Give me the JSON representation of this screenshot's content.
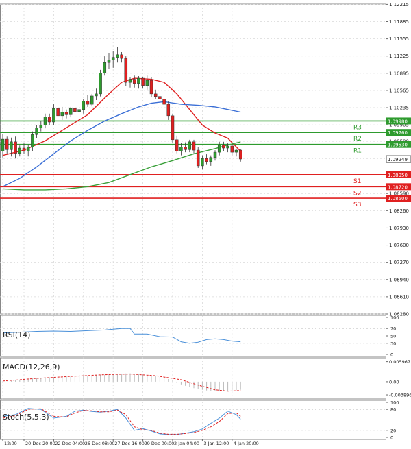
{
  "chart_data": {
    "type": "candlestick",
    "main_panel": {
      "price_axis": {
        "range": [
          1.0628,
          1.1222
        ],
        "ticks": [
          "1.12215",
          "1.11885",
          "1.11555",
          "1.11225",
          "1.10895",
          "1.10565",
          "1.10235",
          "1.09905",
          "1.09590",
          "1.09260",
          "1.08590",
          "1.08260",
          "1.07930",
          "1.07600",
          "1.07270",
          "1.06940",
          "1.06610",
          "1.06280"
        ]
      },
      "current_price": "1.09249",
      "levels": [
        {
          "label": "R3",
          "value": 1.0998,
          "tag": "1.09980",
          "color": "#2e9b2e"
        },
        {
          "label": "R2",
          "value": 1.0976,
          "tag": "1.09760",
          "color": "#2e9b2e"
        },
        {
          "label": "R1",
          "value": 1.0953,
          "tag": "1.09530",
          "color": "#2e9b2e"
        },
        {
          "label": "S1",
          "value": 1.0895,
          "tag": "1.08950",
          "color": "#e02020"
        },
        {
          "label": "S2",
          "value": 1.0872,
          "tag": "1.08720",
          "color": "#e02020"
        },
        {
          "label": "S3",
          "value": 1.085,
          "tag": "1.08500",
          "color": "#e02020"
        }
      ],
      "candles": [
        [
          1.094,
          1.0973,
          1.0928,
          1.0963
        ],
        [
          1.0963,
          1.0968,
          1.0935,
          1.0943
        ],
        [
          1.0943,
          1.0966,
          1.093,
          1.0958
        ],
        [
          1.0958,
          1.0968,
          1.0926,
          1.0936
        ],
        [
          1.0936,
          1.0951,
          1.093,
          1.0946
        ],
        [
          1.0946,
          1.0955,
          1.0935,
          1.094
        ],
        [
          1.094,
          1.0953,
          1.093,
          1.0948
        ],
        [
          1.0948,
          1.0978,
          1.094,
          1.0972
        ],
        [
          1.0972,
          1.099,
          1.0965,
          1.0985
        ],
        [
          1.0985,
          1.0998,
          1.0978,
          1.099
        ],
        [
          1.099,
          1.1012,
          1.0984,
          1.1006
        ],
        [
          1.1006,
          1.1012,
          1.099,
          1.0996
        ],
        [
          1.0996,
          1.103,
          1.099,
          1.1022
        ],
        [
          1.1022,
          1.1035,
          1.1,
          1.1008
        ],
        [
          1.1008,
          1.1025,
          1.1,
          1.1015
        ],
        [
          1.1015,
          1.102,
          1.1003,
          1.101
        ],
        [
          1.101,
          1.1025,
          1.1005,
          1.1022
        ],
        [
          1.1022,
          1.103,
          1.1012,
          1.1016
        ],
        [
          1.1016,
          1.1028,
          1.1008,
          1.102
        ],
        [
          1.102,
          1.104,
          1.1012,
          1.1036
        ],
        [
          1.1036,
          1.1048,
          1.1025,
          1.103
        ],
        [
          1.103,
          1.105,
          1.1026,
          1.1046
        ],
        [
          1.1046,
          1.106,
          1.1038,
          1.105
        ],
        [
          1.105,
          1.1096,
          1.1045,
          1.109
        ],
        [
          1.109,
          1.1122,
          1.1085,
          1.111
        ],
        [
          1.111,
          1.1128,
          1.1098,
          1.1115
        ],
        [
          1.1115,
          1.1132,
          1.11,
          1.112
        ],
        [
          1.112,
          1.114,
          1.111,
          1.1125
        ],
        [
          1.1125,
          1.113,
          1.111,
          1.1118
        ],
        [
          1.1118,
          1.1122,
          1.1065,
          1.1072
        ],
        [
          1.1072,
          1.1082,
          1.1062,
          1.1078
        ],
        [
          1.1078,
          1.1085,
          1.1062,
          1.107
        ],
        [
          1.107,
          1.1084,
          1.106,
          1.108
        ],
        [
          1.108,
          1.1082,
          1.106,
          1.1066
        ],
        [
          1.1066,
          1.1085,
          1.1058,
          1.1076
        ],
        [
          1.1076,
          1.1082,
          1.1044,
          1.105
        ],
        [
          1.105,
          1.1058,
          1.104,
          1.1045
        ],
        [
          1.1045,
          1.1052,
          1.1035,
          1.104
        ],
        [
          1.104,
          1.1048,
          1.1026,
          1.103
        ],
        [
          1.103,
          1.1036,
          1.1,
          1.1008
        ],
        [
          1.1008,
          1.1012,
          1.0955,
          1.0962
        ],
        [
          1.0962,
          1.097,
          1.0936,
          1.094
        ],
        [
          1.094,
          1.0956,
          1.0932,
          1.0948
        ],
        [
          1.0948,
          1.0957,
          1.0938,
          1.0943
        ],
        [
          1.0943,
          1.0962,
          1.0938,
          1.0958
        ],
        [
          1.0958,
          1.0962,
          1.0936,
          1.0942
        ],
        [
          1.0942,
          1.0948,
          1.0908,
          1.0912
        ],
        [
          1.0912,
          1.0932,
          1.0905,
          1.0926
        ],
        [
          1.0926,
          1.0934,
          1.0915,
          1.092
        ],
        [
          1.092,
          1.0932,
          1.0912,
          1.0928
        ],
        [
          1.0928,
          1.0942,
          1.0922,
          1.0938
        ],
        [
          1.0938,
          1.0958,
          1.0932,
          1.0952
        ],
        [
          1.0952,
          1.0958,
          1.094,
          1.0946
        ],
        [
          1.0946,
          1.0955,
          1.0938,
          1.095
        ],
        [
          1.095,
          1.0954,
          1.0932,
          1.0938
        ],
        [
          1.0938,
          1.0945,
          1.093,
          1.0942
        ],
        [
          1.0942,
          1.0944,
          1.092,
          1.0925
        ]
      ],
      "moving_averages": [
        {
          "color": "#e02020",
          "points": [
            [
              0,
              1.0932
            ],
            [
              5,
              1.0942
            ],
            [
              10,
              1.096
            ],
            [
              15,
              1.0985
            ],
            [
              20,
              1.101
            ],
            [
              25,
              1.105
            ],
            [
              28,
              1.1072
            ],
            [
              31,
              1.108
            ],
            [
              35,
              1.1078
            ],
            [
              38,
              1.1072
            ],
            [
              41,
              1.105
            ],
            [
              44,
              1.102
            ],
            [
              47,
              1.099
            ],
            [
              50,
              1.0975
            ],
            [
              53,
              1.0965
            ],
            [
              56,
              1.094
            ]
          ]
        },
        {
          "color": "#3b6fd6",
          "points": [
            [
              0,
              1.0872
            ],
            [
              4,
              1.0888
            ],
            [
              8,
              1.091
            ],
            [
              12,
              1.0935
            ],
            [
              16,
              1.096
            ],
            [
              20,
              1.098
            ],
            [
              24,
              1.0998
            ],
            [
              28,
              1.1012
            ],
            [
              32,
              1.1025
            ],
            [
              35,
              1.1032
            ],
            [
              38,
              1.1035
            ],
            [
              42,
              1.103
            ],
            [
              46,
              1.1028
            ],
            [
              50,
              1.1025
            ],
            [
              53,
              1.102
            ],
            [
              56,
              1.1015
            ]
          ]
        },
        {
          "color": "#3aa03a",
          "points": [
            [
              0,
              1.0868
            ],
            [
              5,
              1.0866
            ],
            [
              10,
              1.0866
            ],
            [
              15,
              1.0868
            ],
            [
              20,
              1.0872
            ],
            [
              25,
              1.088
            ],
            [
              30,
              1.0895
            ],
            [
              35,
              1.091
            ],
            [
              40,
              1.0922
            ],
            [
              45,
              1.0935
            ],
            [
              50,
              1.0945
            ],
            [
              53,
              1.0952
            ],
            [
              56,
              1.0958
            ]
          ]
        }
      ]
    },
    "indicators": [
      {
        "name": "RSI(14)",
        "ticks": [
          "100",
          "70",
          "50",
          "30",
          "0"
        ],
        "range": [
          0,
          100
        ],
        "color": "#4a90d9",
        "values": [
          [
            0,
            58
          ],
          [
            4,
            60
          ],
          [
            8,
            62
          ],
          [
            12,
            63
          ],
          [
            16,
            62
          ],
          [
            20,
            64
          ],
          [
            24,
            66
          ],
          [
            26,
            68
          ],
          [
            28,
            70
          ],
          [
            30,
            70
          ],
          [
            31,
            55
          ],
          [
            34,
            55
          ],
          [
            37,
            48
          ],
          [
            40,
            47
          ],
          [
            42,
            34
          ],
          [
            44,
            30
          ],
          [
            46,
            33
          ],
          [
            48,
            40
          ],
          [
            50,
            42
          ],
          [
            52,
            40
          ],
          [
            54,
            36
          ],
          [
            56,
            34
          ]
        ]
      },
      {
        "name": "MACD(12,26,9)",
        "ticks": [
          "0.005967",
          "0.00",
          "-0.003896"
        ],
        "range": [
          -0.0045,
          0.0065
        ],
        "histogram": [
          [
            0,
            -0.0001
          ],
          [
            3,
            0.0004
          ],
          [
            6,
            0.0009
          ],
          [
            9,
            0.0012
          ],
          [
            12,
            0.0014
          ],
          [
            15,
            0.0017
          ],
          [
            18,
            0.0018
          ],
          [
            21,
            0.0019
          ],
          [
            24,
            0.0021
          ],
          [
            27,
            0.0024
          ],
          [
            30,
            0.0025
          ],
          [
            32,
            0.0023
          ],
          [
            34,
            0.002
          ],
          [
            36,
            0.0016
          ],
          [
            38,
            0.0012
          ],
          [
            40,
            0.0004
          ],
          [
            42,
            -0.0008
          ],
          [
            44,
            -0.0016
          ],
          [
            46,
            -0.0022
          ],
          [
            48,
            -0.0026
          ],
          [
            50,
            -0.0028
          ],
          [
            52,
            -0.0028
          ],
          [
            54,
            -0.0026
          ],
          [
            56,
            -0.0024
          ]
        ],
        "signal": [
          [
            0,
            0.0002
          ],
          [
            8,
            0.001
          ],
          [
            16,
            0.0016
          ],
          [
            24,
            0.0021
          ],
          [
            30,
            0.0023
          ],
          [
            36,
            0.0018
          ],
          [
            42,
            0.0006
          ],
          [
            46,
            -0.001
          ],
          [
            50,
            -0.0024
          ],
          [
            53,
            -0.0028
          ],
          [
            56,
            -0.0026
          ]
        ]
      },
      {
        "name": "Stoch(5,5,3)",
        "ticks": [
          "100",
          "80",
          "20",
          "0"
        ],
        "range": [
          0,
          100
        ],
        "k": [
          [
            0,
            60
          ],
          [
            3,
            65
          ],
          [
            6,
            83
          ],
          [
            9,
            80
          ],
          [
            12,
            55
          ],
          [
            15,
            60
          ],
          [
            17,
            75
          ],
          [
            19,
            78
          ],
          [
            21,
            74
          ],
          [
            23,
            72
          ],
          [
            25,
            75
          ],
          [
            27,
            80
          ],
          [
            29,
            55
          ],
          [
            31,
            20
          ],
          [
            33,
            25
          ],
          [
            35,
            18
          ],
          [
            37,
            10
          ],
          [
            39,
            8
          ],
          [
            41,
            8
          ],
          [
            43,
            12
          ],
          [
            45,
            16
          ],
          [
            47,
            24
          ],
          [
            49,
            40
          ],
          [
            51,
            55
          ],
          [
            53,
            75
          ],
          [
            55,
            65
          ],
          [
            56,
            52
          ]
        ],
        "d": [
          [
            0,
            55
          ],
          [
            3,
            62
          ],
          [
            6,
            80
          ],
          [
            9,
            82
          ],
          [
            12,
            60
          ],
          [
            15,
            58
          ],
          [
            17,
            70
          ],
          [
            19,
            77
          ],
          [
            21,
            76
          ],
          [
            23,
            73
          ],
          [
            25,
            73
          ],
          [
            27,
            78
          ],
          [
            29,
            65
          ],
          [
            31,
            30
          ],
          [
            33,
            22
          ],
          [
            35,
            20
          ],
          [
            37,
            12
          ],
          [
            39,
            9
          ],
          [
            41,
            9
          ],
          [
            43,
            11
          ],
          [
            45,
            14
          ],
          [
            47,
            20
          ],
          [
            49,
            30
          ],
          [
            51,
            45
          ],
          [
            53,
            68
          ],
          [
            55,
            70
          ],
          [
            56,
            60
          ]
        ]
      }
    ],
    "x_axis": {
      "labels": [
        {
          "text": "12:00",
          "index": 0
        },
        {
          "text": "20 Dec 20:00",
          "index": 5
        },
        {
          "text": "22 Dec 04:00",
          "index": 12
        },
        {
          "text": "26 Dec 08:00",
          "index": 19
        },
        {
          "text": "27 Dec 16:00",
          "index": 26
        },
        {
          "text": "29 Dec 00:00",
          "index": 33
        },
        {
          "text": "2 Jan 04:00",
          "index": 40
        },
        {
          "text": "3 Jan 12:00",
          "index": 47
        },
        {
          "text": "4 Jan 20:00",
          "index": 54
        }
      ]
    }
  }
}
